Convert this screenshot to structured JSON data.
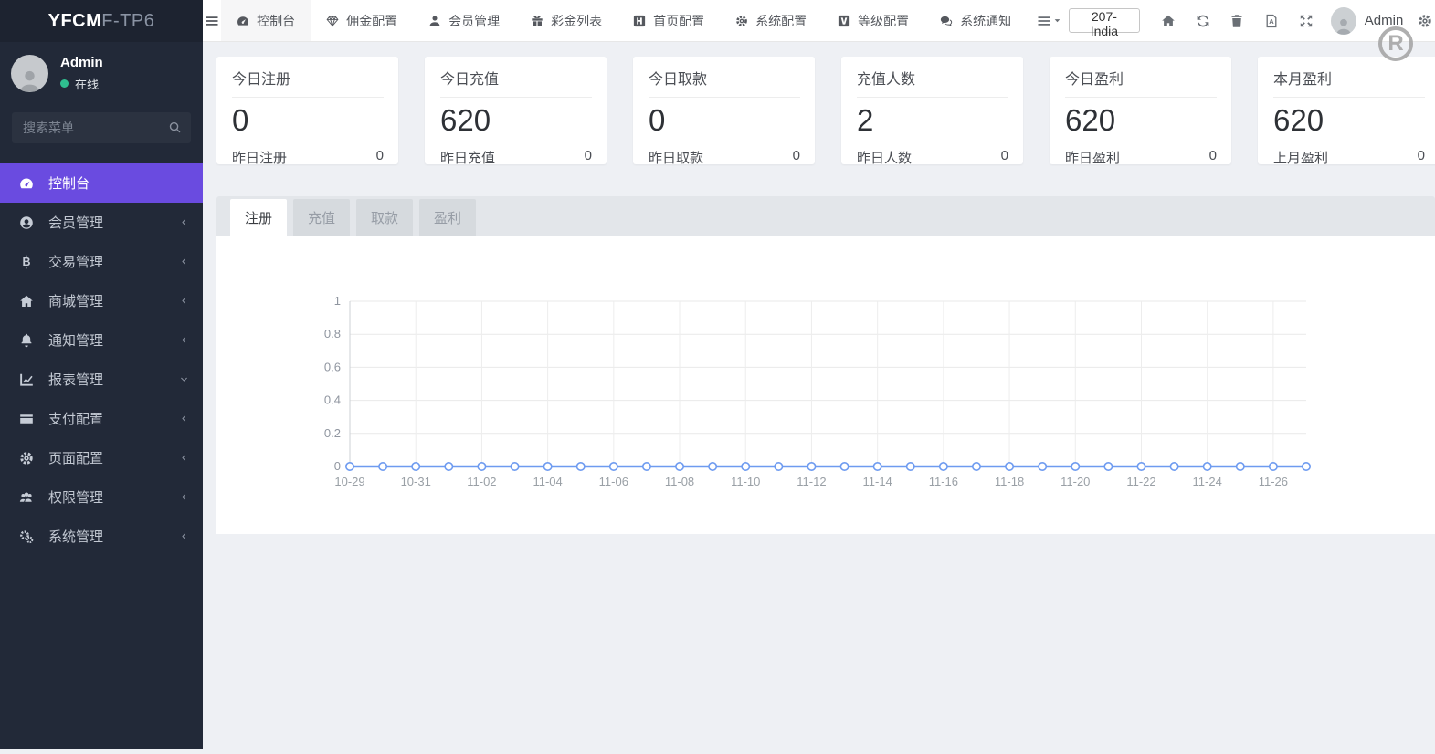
{
  "sidebar": {
    "logo": {
      "bold": "YFCM",
      "rest": "F-TP6"
    },
    "user": {
      "name": "Admin",
      "status": "在线"
    },
    "search_placeholder": "搜索菜单",
    "items": [
      {
        "key": "dashboard",
        "label": "控制台",
        "icon": "tachometer-icon",
        "active": true,
        "chevron": ""
      },
      {
        "key": "member",
        "label": "会员管理",
        "icon": "user-circle-icon",
        "active": false,
        "chevron": "left"
      },
      {
        "key": "trade",
        "label": "交易管理",
        "icon": "bitcoin-icon",
        "active": false,
        "chevron": "left"
      },
      {
        "key": "mall",
        "label": "商城管理",
        "icon": "home-icon",
        "active": false,
        "chevron": "left"
      },
      {
        "key": "notice",
        "label": "通知管理",
        "icon": "bell-icon",
        "active": false,
        "chevron": "left"
      },
      {
        "key": "report",
        "label": "报表管理",
        "icon": "chart-line-icon",
        "active": false,
        "chevron": "down"
      },
      {
        "key": "payment",
        "label": "支付配置",
        "icon": "credit-card-icon",
        "active": false,
        "chevron": "left"
      },
      {
        "key": "page",
        "label": "页面配置",
        "icon": "gear-icon",
        "active": false,
        "chevron": "left"
      },
      {
        "key": "permission",
        "label": "权限管理",
        "icon": "users-icon",
        "active": false,
        "chevron": "left"
      },
      {
        "key": "system",
        "label": "系统管理",
        "icon": "cogs-icon",
        "active": false,
        "chevron": "left"
      }
    ]
  },
  "topbar": {
    "menu": [
      {
        "key": "dashboard",
        "label": "控制台",
        "icon": "tachometer-icon",
        "active": true
      },
      {
        "key": "commission",
        "label": "佣金配置",
        "icon": "gem-icon",
        "active": false
      },
      {
        "key": "member-manage",
        "label": "会员管理",
        "icon": "user-icon",
        "active": false
      },
      {
        "key": "bonus-list",
        "label": "彩金列表",
        "icon": "gift-icon",
        "active": false
      },
      {
        "key": "home-config",
        "label": "首页配置",
        "icon": "h-square-icon",
        "active": false
      },
      {
        "key": "system-config",
        "label": "系统配置",
        "icon": "gear-icon",
        "active": false
      },
      {
        "key": "level-config",
        "label": "等级配置",
        "icon": "v-square-icon",
        "active": false
      },
      {
        "key": "system-notice",
        "label": "系统通知",
        "icon": "comments-icon",
        "active": false
      }
    ],
    "site_button": "207-India",
    "user_name": "Admin"
  },
  "cards": [
    {
      "key": "today-register",
      "title": "今日注册",
      "value": "0",
      "sub_label": "昨日注册",
      "sub_value": "0"
    },
    {
      "key": "today-recharge",
      "title": "今日充值",
      "value": "620",
      "sub_label": "昨日充值",
      "sub_value": "0"
    },
    {
      "key": "today-withdraw",
      "title": "今日取款",
      "value": "0",
      "sub_label": "昨日取款",
      "sub_value": "0"
    },
    {
      "key": "recharge-users",
      "title": "充值人数",
      "value": "2",
      "sub_label": "昨日人数",
      "sub_value": "0"
    },
    {
      "key": "today-profit",
      "title": "今日盈利",
      "value": "620",
      "sub_label": "昨日盈利",
      "sub_value": "0"
    },
    {
      "key": "month-profit",
      "title": "本月盈利",
      "value": "620",
      "sub_label": "上月盈利",
      "sub_value": "0"
    }
  ],
  "tabs": [
    {
      "key": "register",
      "label": "注册",
      "active": true
    },
    {
      "key": "recharge",
      "label": "充值",
      "active": false
    },
    {
      "key": "withdraw",
      "label": "取款",
      "active": false
    },
    {
      "key": "profit",
      "label": "盈利",
      "active": false
    }
  ],
  "watermark": "R",
  "chart_data": {
    "type": "line",
    "title": "注册",
    "x": [
      "10-29",
      "10-30",
      "10-31",
      "11-01",
      "11-02",
      "11-03",
      "11-04",
      "11-05",
      "11-06",
      "11-07",
      "11-08",
      "11-09",
      "11-10",
      "11-11",
      "11-12",
      "11-13",
      "11-14",
      "11-15",
      "11-16",
      "11-17",
      "11-18",
      "11-19",
      "11-20",
      "11-21",
      "11-22",
      "11-23",
      "11-24",
      "11-25",
      "11-26",
      "11-27"
    ],
    "x_tick_labels": [
      "10-29",
      "10-31",
      "11-02",
      "11-04",
      "11-06",
      "11-08",
      "11-10",
      "11-12",
      "11-14",
      "11-16",
      "11-18",
      "11-20",
      "11-22",
      "11-24",
      "11-26"
    ],
    "series": [
      {
        "name": "注册",
        "values": [
          0,
          0,
          0,
          0,
          0,
          0,
          0,
          0,
          0,
          0,
          0,
          0,
          0,
          0,
          0,
          0,
          0,
          0,
          0,
          0,
          0,
          0,
          0,
          0,
          0,
          0,
          0,
          0,
          0,
          0
        ]
      }
    ],
    "ylim": [
      0,
      1
    ],
    "yticks": [
      0,
      0.2,
      0.4,
      0.6,
      0.8,
      1
    ],
    "grid": true,
    "legend": "none",
    "line_color": "#6e9bf0",
    "marker": "circle-open"
  }
}
